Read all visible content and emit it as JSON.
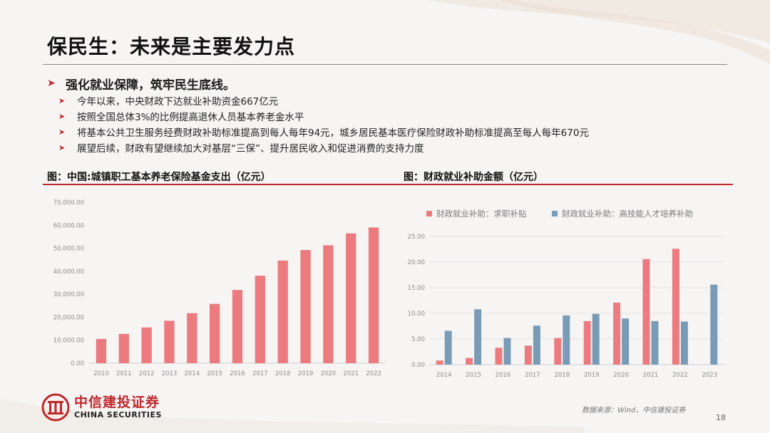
{
  "page": {
    "title": "保民生：未来是主要发力点",
    "page_number": "18",
    "source": "数据来源：Wind，中信建投证券"
  },
  "bullets": {
    "main": "强化就业保障，筑牢民生底线。",
    "sub": [
      "今年以来，中央财政下达就业补助资金667亿元",
      "按照全国总体3%的比例提高退休人员基本养老金水平",
      "将基本公共卫生服务经费财政补助标准提高到每人每年94元，城乡居民基本医疗保险财政补助标准提高至每人每年670元",
      "展望后续，财政有望继续加大对基层“三保”、提升居民收入和促进消费的支持力度"
    ]
  },
  "logo": {
    "cn": "中信建投证券",
    "en": "CHINA SECURITIES"
  },
  "colors": {
    "accent_red": "#c0282d",
    "bar_pink": "#ec7b7f",
    "bar_blue": "#7a9bb5"
  },
  "chart_data": [
    {
      "type": "bar",
      "title": "图：中国:城镇职工基本养老保险基金支出（亿元）",
      "categories": [
        "2010",
        "2011",
        "2012",
        "2013",
        "2014",
        "2015",
        "2016",
        "2017",
        "2018",
        "2019",
        "2020",
        "2021",
        "2022"
      ],
      "series": [
        {
          "name": "",
          "values": [
            10555,
            12765,
            15562,
            18470,
            21755,
            25813,
            31854,
            38052,
            44645,
            49228,
            51301,
            56481,
            59035
          ]
        }
      ],
      "ylim": [
        0,
        70000
      ],
      "yticks": [
        "0.00",
        "10,000.00",
        "20,000.00",
        "30,000.00",
        "40,000.00",
        "50,000.00",
        "60,000.00",
        "70,000.00"
      ],
      "grid": false,
      "legend": "none"
    },
    {
      "type": "bar",
      "title": "图：财政就业补助金额（亿元）",
      "categories": [
        "2014",
        "2015",
        "2016",
        "2017",
        "2018",
        "2019",
        "2020",
        "2021",
        "2022",
        "2023"
      ],
      "series": [
        {
          "name": "财政就业补助：求职补贴",
          "values": [
            0.8,
            1.3,
            3.3,
            3.7,
            5.2,
            8.5,
            12.1,
            20.6,
            22.6,
            null
          ]
        },
        {
          "name": "财政就业补助：高技能人才培养补助",
          "values": [
            6.6,
            10.8,
            5.2,
            7.6,
            9.6,
            9.9,
            9.0,
            8.5,
            8.4,
            15.6
          ]
        }
      ],
      "ylim": [
        0,
        25
      ],
      "yticks": [
        "0.00",
        "5.00",
        "10.00",
        "15.00",
        "20.00",
        "25.00"
      ],
      "grid": true,
      "legend": "top"
    }
  ]
}
